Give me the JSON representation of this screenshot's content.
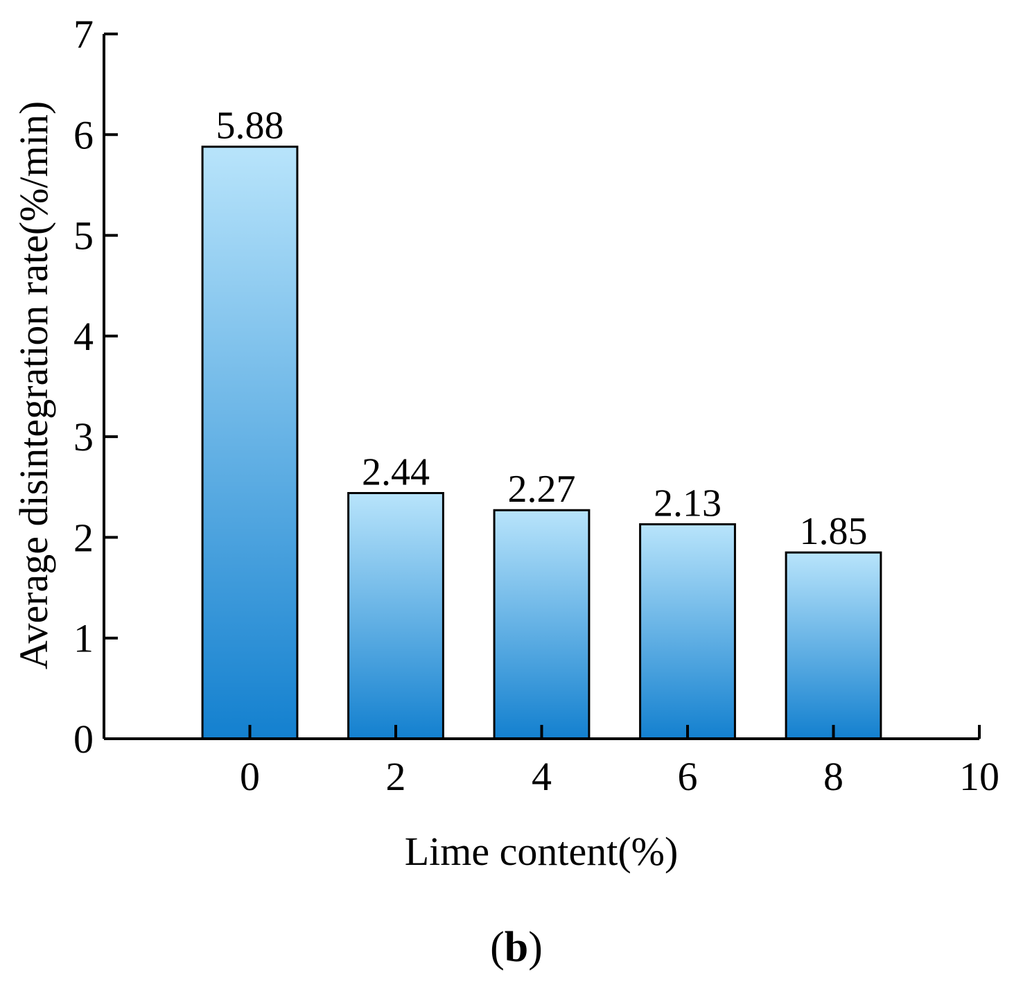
{
  "chart_data": {
    "type": "bar",
    "panel_label_open": "(",
    "panel_label_letter": "b",
    "panel_label_close": ")",
    "xlabel": "Lime content(%)",
    "ylabel": "Average disintegration rate(%/min)",
    "categories": [
      "0",
      "2",
      "4",
      "6",
      "8"
    ],
    "x": [
      0,
      2,
      4,
      6,
      8
    ],
    "values": [
      5.88,
      2.44,
      2.27,
      2.13,
      1.85
    ],
    "data_labels": [
      "5.88",
      "2.44",
      "2.27",
      "2.13",
      "1.85"
    ],
    "xlim": [
      -2,
      10
    ],
    "ylim": [
      0,
      7
    ],
    "x_ticks": [
      0,
      2,
      4,
      6,
      8,
      10
    ],
    "y_ticks": [
      0,
      1,
      2,
      3,
      4,
      5,
      6,
      7
    ],
    "bar_width": 1.3,
    "grid": false,
    "colors": {
      "bar_top": "#b8e4fb",
      "bar_bottom": "#1380cf",
      "axis": "#000000"
    }
  }
}
